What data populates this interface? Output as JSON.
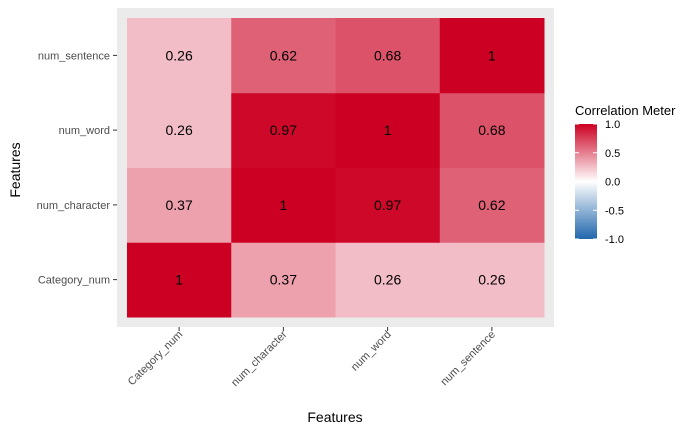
{
  "chart_data": {
    "type": "heatmap",
    "xlabel": "Features",
    "ylabel": "Features",
    "x_categories": [
      "Category_num",
      "num_character",
      "num_word",
      "num_sentence"
    ],
    "y_categories": [
      "Category_num",
      "num_character",
      "num_word",
      "num_sentence"
    ],
    "values": [
      [
        1,
        0.37,
        0.26,
        0.26
      ],
      [
        0.37,
        1,
        0.97,
        0.62
      ],
      [
        0.26,
        0.97,
        1,
        0.68
      ],
      [
        0.26,
        0.62,
        0.68,
        1
      ]
    ],
    "legend": {
      "title": "Correlation Meter",
      "ticks": [
        "1.0",
        "0.5",
        "0.0",
        "-0.5",
        "-1.0"
      ],
      "tick_values": [
        1.0,
        0.5,
        0.0,
        -0.5,
        -1.0
      ],
      "range": [
        -1,
        1
      ],
      "placement": "right"
    },
    "colors": {
      "low": "#2166AC",
      "mid": "#FFFFFF",
      "high": "#CC0022",
      "panel_background": "#EBEBEB"
    }
  }
}
